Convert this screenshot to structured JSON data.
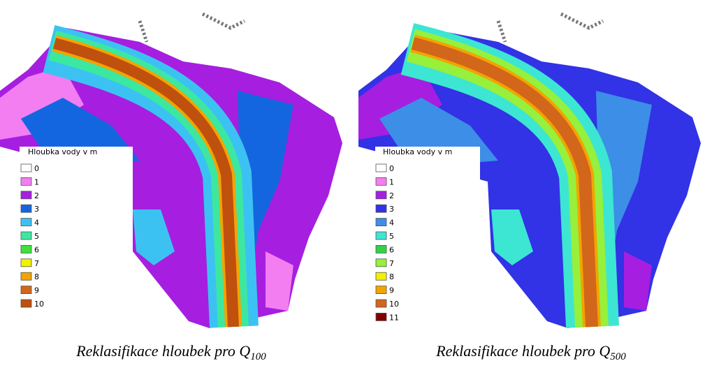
{
  "panels": [
    {
      "legend": {
        "title": "Hloubka vody v m",
        "items": [
          {
            "label": "0",
            "color": "#ffffff"
          },
          {
            "label": "1",
            "color": "#f27ef2"
          },
          {
            "label": "2",
            "color": "#a61ee0"
          },
          {
            "label": "3",
            "color": "#1466e0"
          },
          {
            "label": "4",
            "color": "#3cc2f2"
          },
          {
            "label": "5",
            "color": "#3ce8a0"
          },
          {
            "label": "6",
            "color": "#3ce23c"
          },
          {
            "label": "7",
            "color": "#f2f200"
          },
          {
            "label": "8",
            "color": "#f2a400"
          },
          {
            "label": "9",
            "color": "#d2661a"
          },
          {
            "label": "10",
            "color": "#c0500e"
          }
        ]
      },
      "caption": "Reklasifikace hloubek pro Q",
      "caption_sub": "100"
    },
    {
      "legend": {
        "title": "Hloubka vody v m",
        "items": [
          {
            "label": "0",
            "color": "#ffffff"
          },
          {
            "label": "1",
            "color": "#f27ef2"
          },
          {
            "label": "2",
            "color": "#a61ee0"
          },
          {
            "label": "3",
            "color": "#3232e6"
          },
          {
            "label": "4",
            "color": "#3c8ee6"
          },
          {
            "label": "5",
            "color": "#3ce6d2"
          },
          {
            "label": "6",
            "color": "#32d246"
          },
          {
            "label": "7",
            "color": "#96f03c"
          },
          {
            "label": "8",
            "color": "#f2f200"
          },
          {
            "label": "9",
            "color": "#f2a400"
          },
          {
            "label": "10",
            "color": "#d2661a"
          },
          {
            "label": "11",
            "color": "#800000"
          }
        ]
      },
      "caption": "Reklasifikace hloubek pro Q",
      "caption_sub": "500"
    }
  ]
}
